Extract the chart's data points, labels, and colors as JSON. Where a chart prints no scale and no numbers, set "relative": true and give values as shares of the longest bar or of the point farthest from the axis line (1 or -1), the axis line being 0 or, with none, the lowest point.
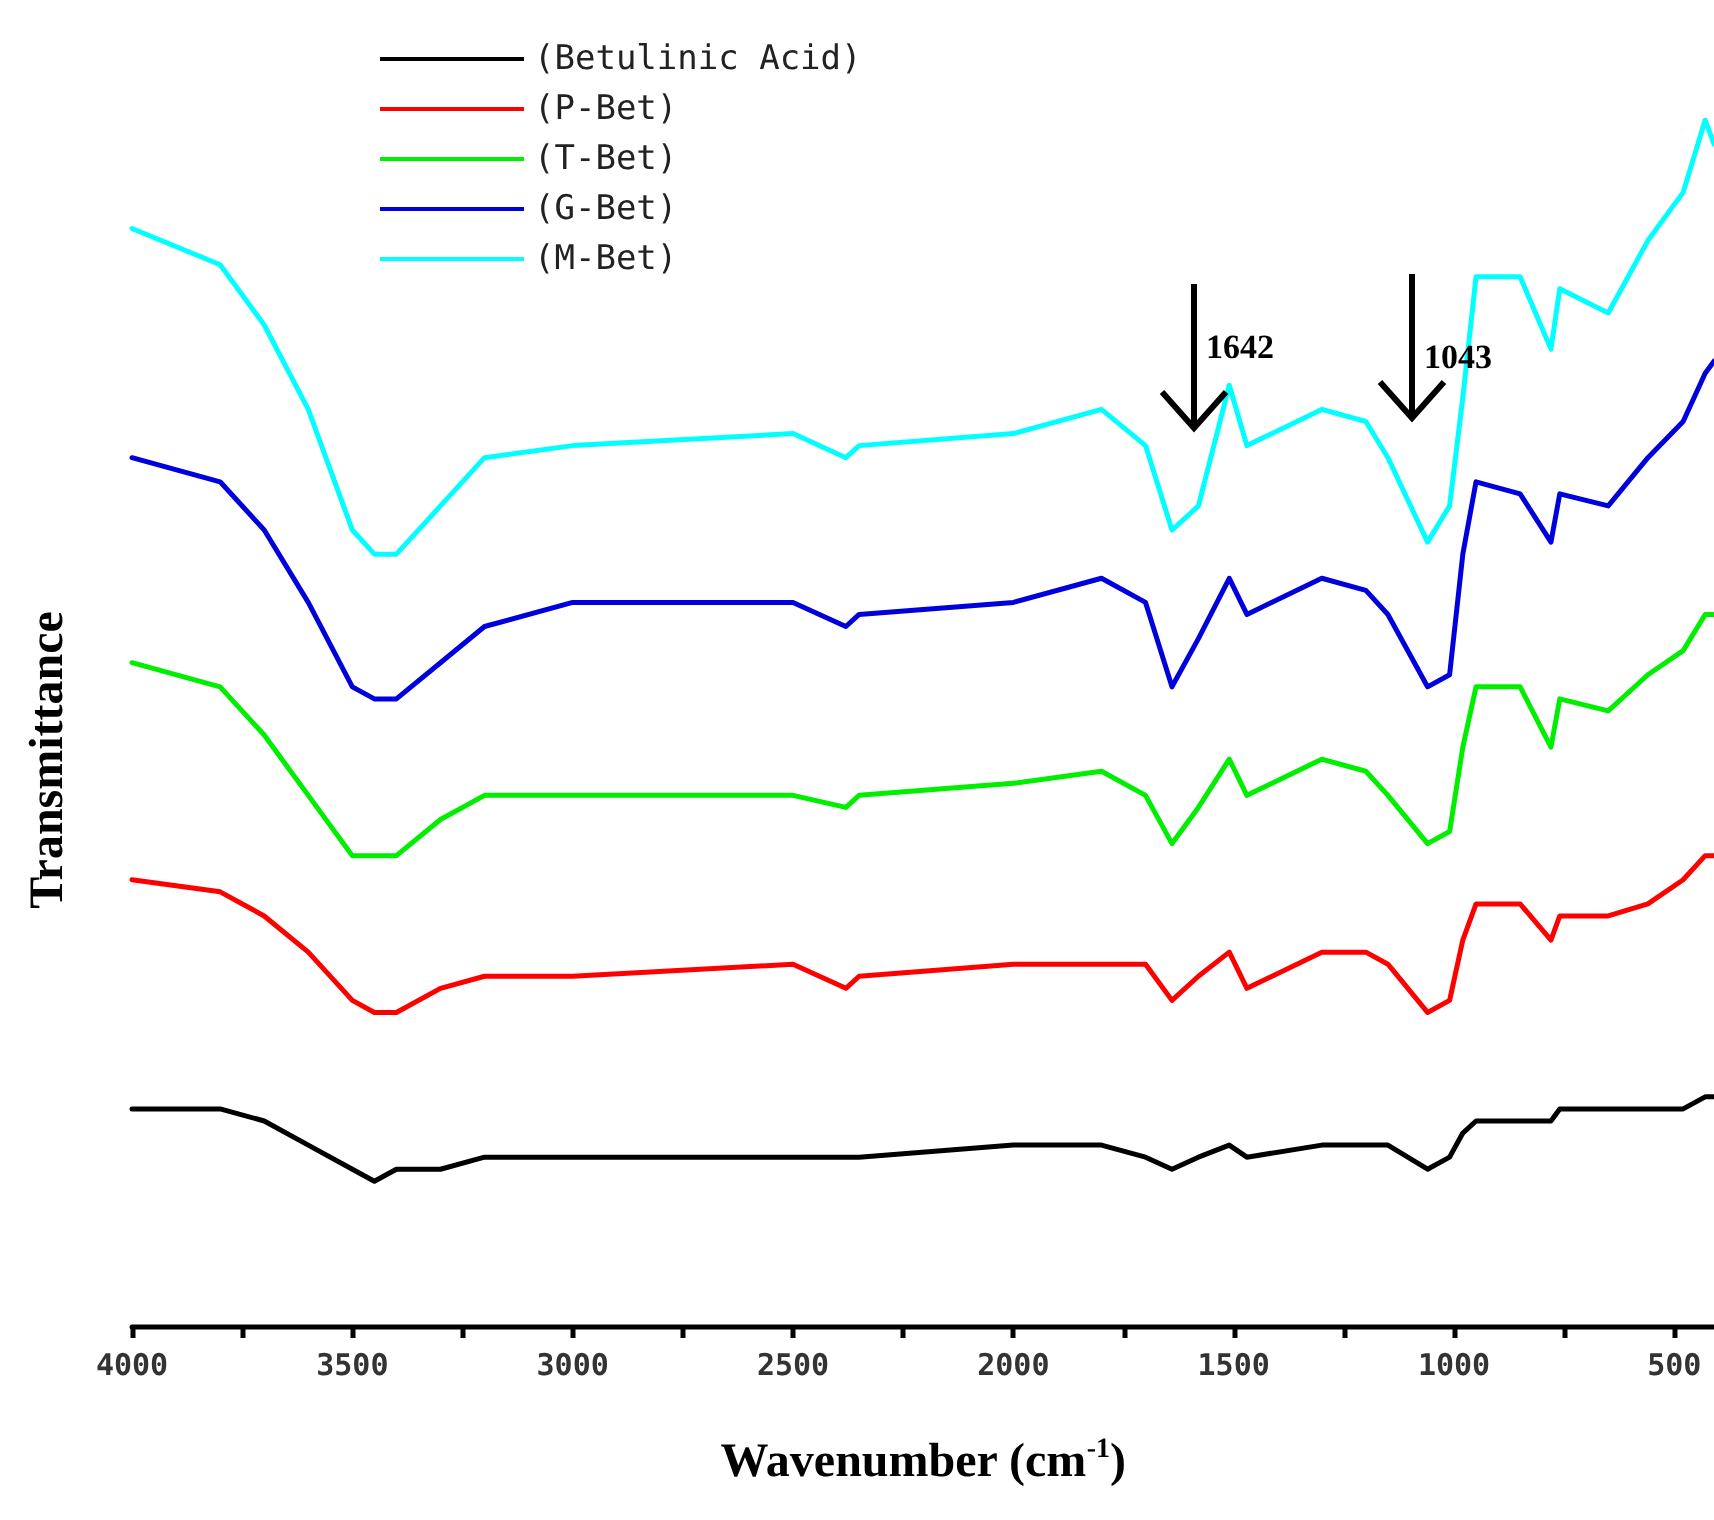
{
  "chart_data": {
    "type": "line",
    "relative": true,
    "xlabel": "Wavenumber (cm$^{-1}$)",
    "ylabel": "Transmittance",
    "x": [
      4000,
      3800,
      3700,
      3600,
      3500,
      3450,
      3400,
      3300,
      3200,
      3000,
      2500,
      2380,
      2350,
      2000,
      1800,
      1700,
      1640,
      1580,
      1510,
      1470,
      1300,
      1200,
      1150,
      1060,
      1010,
      980,
      950,
      850,
      780,
      760,
      650,
      560,
      480,
      430,
      410
    ],
    "xlim": [
      4000,
      410
    ],
    "xticks": [
      4000,
      {
        "value": 3750,
        "label": null
      },
      3500,
      {
        "value": 3250,
        "label": null
      },
      3000,
      {
        "value": 2750,
        "label": null
      },
      2500,
      {
        "value": 2250,
        "label": null
      },
      2000,
      {
        "value": 1750,
        "label": null
      },
      1500,
      {
        "value": 1250,
        "label": null
      },
      1000,
      {
        "value": 750,
        "label": null
      },
      500
    ],
    "series": [
      {
        "name": "(Betulinic Acid)",
        "color": "#000000",
        "values": [
          0.18,
          0.18,
          0.17,
          0.15,
          0.13,
          0.12,
          0.13,
          0.13,
          0.14,
          0.14,
          0.14,
          0.14,
          0.14,
          0.15,
          0.15,
          0.14,
          0.13,
          0.14,
          0.15,
          0.14,
          0.15,
          0.15,
          0.15,
          0.13,
          0.14,
          0.16,
          0.17,
          0.17,
          0.17,
          0.18,
          0.18,
          0.18,
          0.18,
          0.19,
          0.19
        ]
      },
      {
        "name": "(P-Bet)",
        "color": "#ff0000",
        "values": [
          0.37,
          0.36,
          0.34,
          0.31,
          0.27,
          0.26,
          0.26,
          0.28,
          0.29,
          0.29,
          0.3,
          0.28,
          0.29,
          0.3,
          0.3,
          0.3,
          0.27,
          0.29,
          0.31,
          0.28,
          0.31,
          0.31,
          0.3,
          0.26,
          0.27,
          0.32,
          0.35,
          0.35,
          0.32,
          0.34,
          0.34,
          0.35,
          0.37,
          0.39,
          0.39
        ]
      },
      {
        "name": "(T-Bet)",
        "color": "#00ee00",
        "values": [
          0.55,
          0.53,
          0.49,
          0.44,
          0.39,
          0.39,
          0.39,
          0.42,
          0.44,
          0.44,
          0.44,
          0.43,
          0.44,
          0.45,
          0.46,
          0.44,
          0.4,
          0.43,
          0.47,
          0.44,
          0.47,
          0.46,
          0.44,
          0.4,
          0.41,
          0.48,
          0.53,
          0.53,
          0.48,
          0.52,
          0.51,
          0.54,
          0.56,
          0.59,
          0.59
        ]
      },
      {
        "name": "(G-Bet)",
        "color": "#0000dd",
        "values": [
          0.72,
          0.7,
          0.66,
          0.6,
          0.53,
          0.52,
          0.52,
          0.55,
          0.58,
          0.6,
          0.6,
          0.58,
          0.59,
          0.6,
          0.62,
          0.6,
          0.53,
          0.57,
          0.62,
          0.59,
          0.62,
          0.61,
          0.59,
          0.53,
          0.54,
          0.64,
          0.7,
          0.69,
          0.65,
          0.69,
          0.68,
          0.72,
          0.75,
          0.79,
          0.8
        ]
      },
      {
        "name": "(M-Bet)",
        "color": "#00ffff",
        "values": [
          0.91,
          0.88,
          0.83,
          0.76,
          0.66,
          0.64,
          0.64,
          0.68,
          0.72,
          0.73,
          0.74,
          0.72,
          0.73,
          0.74,
          0.76,
          0.73,
          0.66,
          0.68,
          0.78,
          0.73,
          0.76,
          0.75,
          0.72,
          0.65,
          0.68,
          0.77,
          0.87,
          0.87,
          0.81,
          0.86,
          0.84,
          0.9,
          0.94,
          1,
          0.98
        ]
      }
    ],
    "annotations": [
      "1642",
      "1043"
    ],
    "legend": "top left",
    "grid": false,
    "marker": "none",
    "line_style": "solid"
  }
}
